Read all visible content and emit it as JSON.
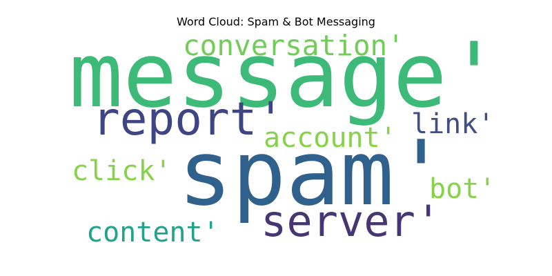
{
  "title": "Word Cloud: Spam & Bot Messaging",
  "words": {
    "message": {
      "text": "message'",
      "color": "#3dba78"
    },
    "spam": {
      "text": "spam'",
      "color": "#30608c"
    },
    "conversation": {
      "text": "conversation'",
      "color": "#71cc58"
    },
    "report": {
      "text": "report'",
      "color": "#3d4585"
    },
    "account": {
      "text": "account'",
      "color": "#86d34a"
    },
    "link": {
      "text": "link'",
      "color": "#3f4f86"
    },
    "click": {
      "text": "click'",
      "color": "#86d34a"
    },
    "bot": {
      "text": "bot'",
      "color": "#86d34a"
    },
    "server": {
      "text": "server'",
      "color": "#453674"
    },
    "content": {
      "text": "content'",
      "color": "#21a28a"
    }
  }
}
